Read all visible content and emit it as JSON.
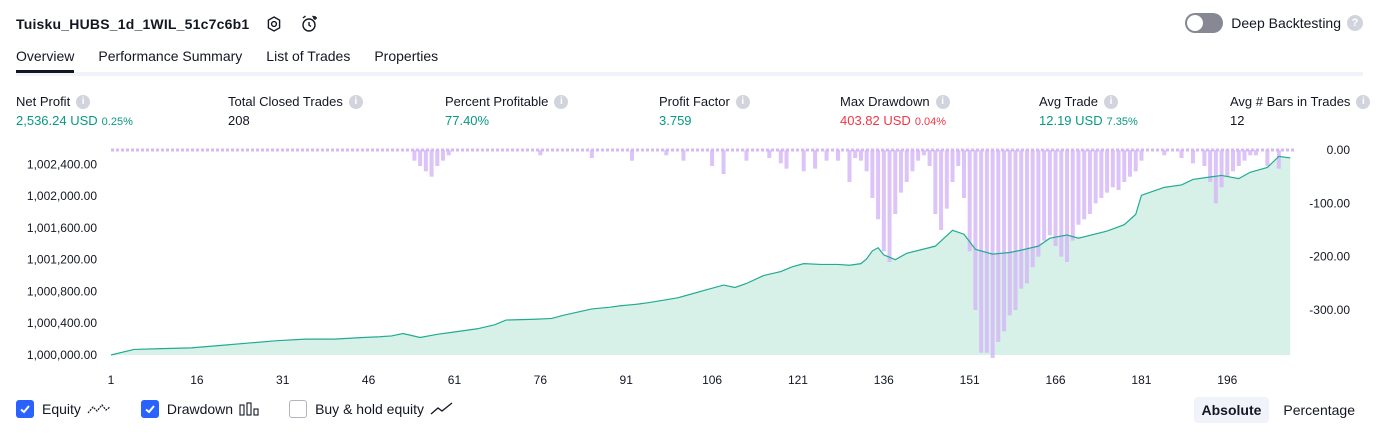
{
  "header": {
    "title": "Tuisku_HUBS_1d_1WIL_51c7c6b1",
    "deep_backtesting_label": "Deep Backtesting",
    "deep_backtesting_on": false
  },
  "tabs": [
    {
      "label": "Overview",
      "active": true
    },
    {
      "label": "Performance Summary",
      "active": false
    },
    {
      "label": "List of Trades",
      "active": false
    },
    {
      "label": "Properties",
      "active": false
    }
  ],
  "stats": {
    "net_profit": {
      "label": "Net Profit",
      "value": "2,536.24 USD",
      "pct": "0.25%"
    },
    "total_closed_trades": {
      "label": "Total Closed Trades",
      "value": "208"
    },
    "percent_profitable": {
      "label": "Percent Profitable",
      "value": "77.40%"
    },
    "profit_factor": {
      "label": "Profit Factor",
      "value": "3.759"
    },
    "max_drawdown": {
      "label": "Max Drawdown",
      "value": "403.82 USD",
      "pct": "0.04%"
    },
    "avg_trade": {
      "label": "Avg Trade",
      "value": "12.19 USD",
      "pct": "7.35%"
    },
    "avg_bars": {
      "label": "Avg # Bars in Trades",
      "value": "12"
    }
  },
  "legend": {
    "equity": {
      "label": "Equity",
      "checked": true
    },
    "drawdown": {
      "label": "Drawdown",
      "checked": true
    },
    "buy_hold": {
      "label": "Buy & hold equity",
      "checked": false
    }
  },
  "mode": {
    "absolute": "Absolute",
    "percentage": "Percentage",
    "selected": "absolute"
  },
  "colors": {
    "equity_line": "#22ab94",
    "equity_fill": "#d3efe6",
    "drawdown_bar": "#d6b8f7",
    "accent": "#2962ff",
    "positive": "#089981",
    "negative": "#f23645"
  },
  "chart_data": {
    "type": "area",
    "x_ticks": [
      "1",
      "16",
      "31",
      "46",
      "61",
      "76",
      "91",
      "106",
      "121",
      "136",
      "151",
      "166",
      "181",
      "196"
    ],
    "x_range": [
      1,
      208
    ],
    "left_ticks": [
      "1,002,400.00",
      "1,002,000.00",
      "1,001,600.00",
      "1,001,200.00",
      "1,000,800.00",
      "1,000,400.00",
      "1,000,000.00"
    ],
    "left_range": [
      1000000,
      1002580
    ],
    "right_ticks": [
      "0.00",
      "-100.00",
      "-200.00",
      "-300.00"
    ],
    "right_range": [
      -390,
      0
    ],
    "series": [
      {
        "name": "Equity",
        "x": [
          1,
          5,
          10,
          15,
          20,
          25,
          30,
          35,
          40,
          45,
          48,
          50,
          52,
          55,
          58,
          60,
          65,
          68,
          70,
          75,
          78,
          80,
          85,
          88,
          90,
          93,
          95,
          100,
          102,
          105,
          108,
          110,
          112,
          115,
          118,
          120,
          122,
          125,
          128,
          130,
          132,
          133,
          134,
          135,
          136,
          138,
          140,
          145,
          148,
          150,
          152,
          155,
          158,
          160,
          163,
          165,
          168,
          170,
          175,
          178,
          180,
          181,
          183,
          185,
          188,
          190,
          193,
          195,
          198,
          200,
          203,
          205,
          207
        ],
        "values": [
          1000000,
          1000070,
          1000080,
          1000090,
          1000120,
          1000150,
          1000180,
          1000200,
          1000200,
          1000220,
          1000230,
          1000240,
          1000270,
          1000220,
          1000260,
          1000280,
          1000330,
          1000380,
          1000440,
          1000450,
          1000460,
          1000500,
          1000580,
          1000600,
          1000620,
          1000640,
          1000660,
          1000720,
          1000760,
          1000820,
          1000880,
          1000850,
          1000900,
          1001000,
          1001050,
          1001110,
          1001150,
          1001140,
          1001140,
          1001130,
          1001150,
          1001210,
          1001310,
          1001350,
          1001260,
          1001200,
          1001280,
          1001370,
          1001570,
          1001520,
          1001330,
          1001270,
          1001290,
          1001320,
          1001370,
          1001470,
          1001510,
          1001470,
          1001560,
          1001640,
          1001770,
          1002010,
          1002060,
          1002110,
          1002140,
          1002210,
          1002240,
          1002260,
          1002220,
          1002300,
          1002360,
          1002500,
          1002480
        ]
      },
      {
        "name": "Drawdown",
        "x": [
          54,
          55,
          56,
          57,
          58,
          59,
          60,
          76,
          85,
          92,
          98,
          101,
          106,
          108,
          112,
          116,
          118,
          119,
          122,
          124,
          126,
          128,
          130,
          131,
          132,
          133,
          134,
          135,
          136,
          137,
          138,
          139,
          140,
          141,
          142,
          143,
          144,
          145,
          146,
          147,
          148,
          149,
          150,
          151,
          152,
          153,
          154,
          155,
          156,
          157,
          158,
          159,
          160,
          161,
          162,
          163,
          164,
          165,
          166,
          167,
          168,
          169,
          170,
          171,
          172,
          173,
          174,
          175,
          176,
          177,
          178,
          179,
          180,
          181,
          185,
          188,
          190,
          192,
          193,
          194,
          195,
          196,
          197,
          198,
          199,
          200,
          201,
          203,
          205
        ],
        "values": [
          -20,
          -30,
          -40,
          -50,
          -30,
          -20,
          -10,
          -10,
          -15,
          -20,
          -10,
          -20,
          -30,
          -45,
          -20,
          -15,
          -25,
          -35,
          -40,
          -35,
          -20,
          -20,
          -60,
          -15,
          -20,
          -40,
          -90,
          -130,
          -190,
          -210,
          -120,
          -80,
          -60,
          -40,
          -20,
          -10,
          -30,
          -120,
          -150,
          -110,
          -60,
          -30,
          -90,
          -190,
          -300,
          -380,
          -380,
          -390,
          -360,
          -340,
          -310,
          -300,
          -260,
          -250,
          -220,
          -200,
          -170,
          -160,
          -180,
          -200,
          -210,
          -170,
          -140,
          -130,
          -120,
          -100,
          -90,
          -80,
          -70,
          -75,
          -60,
          -50,
          -40,
          -20,
          -10,
          -15,
          -25,
          -30,
          -60,
          -100,
          -70,
          -50,
          -40,
          -30,
          -20,
          -10,
          -10,
          -30,
          -35
        ]
      }
    ]
  }
}
